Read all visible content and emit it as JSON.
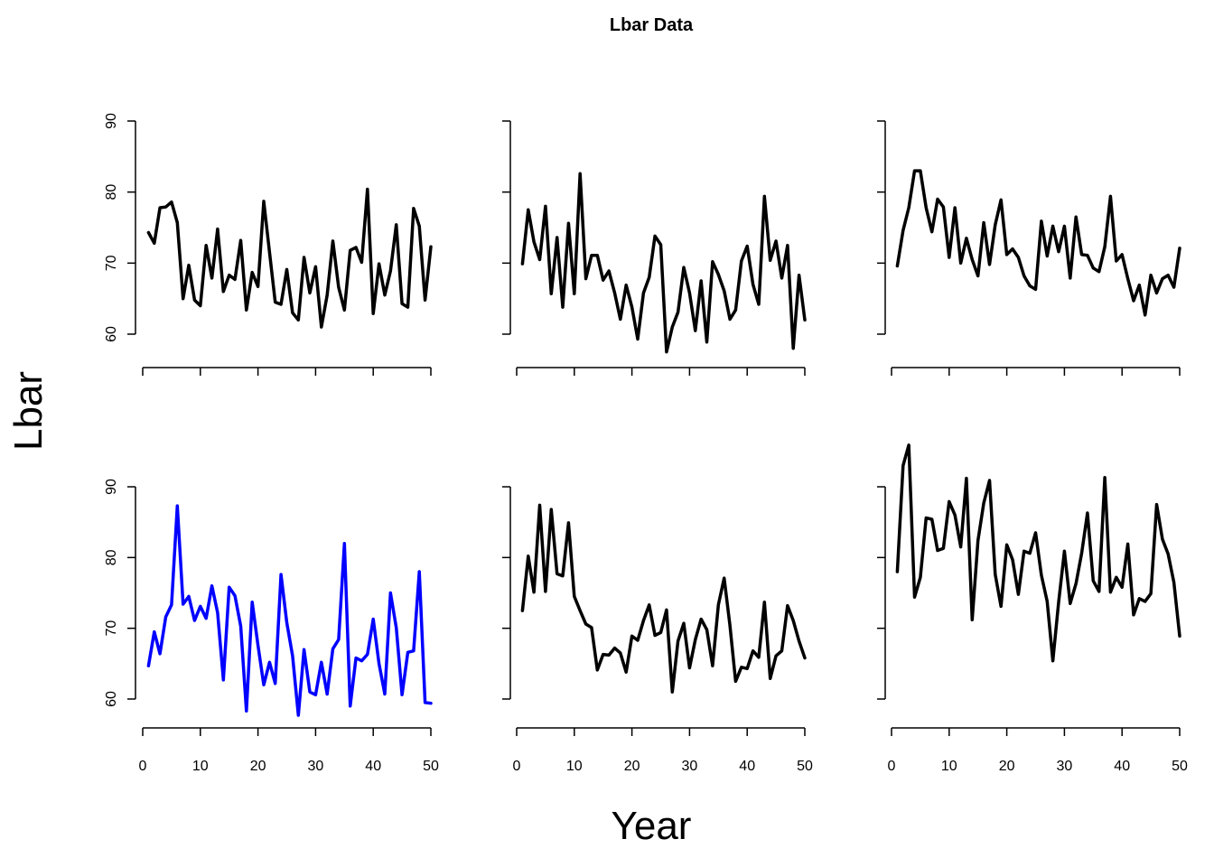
{
  "figure": {
    "title": "Lbar Data",
    "xlabel": "Year",
    "ylabel": "Lbar"
  },
  "chart_data": [
    {
      "type": "line",
      "panel": "row-1-col-1",
      "xlim": [
        0,
        50
      ],
      "ylim": [
        57,
        90
      ],
      "xticks": [
        0,
        10,
        20,
        30,
        40,
        50
      ],
      "yticks": [
        60,
        70,
        80,
        90
      ],
      "show_x_tick_labels": false,
      "show_y_tick_labels": true,
      "color": "#000000",
      "x": [
        1,
        2,
        3,
        4,
        5,
        6,
        7,
        8,
        9,
        10,
        11,
        12,
        13,
        14,
        15,
        16,
        17,
        18,
        19,
        20,
        21,
        22,
        23,
        24,
        25,
        26,
        27,
        28,
        29,
        30,
        31,
        32,
        33,
        34,
        35,
        36,
        37,
        38,
        39,
        40,
        41,
        42,
        43,
        44,
        45,
        46,
        47,
        48,
        49,
        50
      ],
      "y": [
        74.3,
        72.8,
        77.8,
        77.9,
        78.6,
        75.7,
        65.0,
        69.7,
        64.8,
        64.0,
        72.5,
        67.9,
        74.8,
        66.0,
        68.3,
        67.7,
        73.2,
        63.4,
        68.7,
        66.7,
        78.7,
        71.5,
        64.5,
        64.2,
        69.1,
        63.0,
        62.0,
        70.8,
        65.8,
        69.5,
        61.0,
        65.5,
        73.1,
        66.6,
        63.4,
        71.8,
        72.2,
        70.1,
        80.4,
        62.9,
        69.9,
        65.5,
        68.9,
        75.4,
        64.3,
        63.8,
        77.7,
        75.2,
        64.8,
        72.3
      ]
    },
    {
      "type": "line",
      "panel": "row-1-col-2",
      "xlim": [
        0,
        50
      ],
      "ylim": [
        57,
        90
      ],
      "xticks": [
        0,
        10,
        20,
        30,
        40,
        50
      ],
      "yticks": [
        60,
        70,
        80,
        90
      ],
      "show_x_tick_labels": false,
      "show_y_tick_labels": false,
      "color": "#000000",
      "x": [
        1,
        2,
        3,
        4,
        5,
        6,
        7,
        8,
        9,
        10,
        11,
        12,
        13,
        14,
        15,
        16,
        17,
        18,
        19,
        20,
        21,
        22,
        23,
        24,
        25,
        26,
        27,
        28,
        29,
        30,
        31,
        32,
        33,
        34,
        35,
        36,
        37,
        38,
        39,
        40,
        41,
        42,
        43,
        44,
        45,
        46,
        47,
        48,
        49,
        50
      ],
      "y": [
        69.9,
        77.5,
        73.0,
        70.5,
        78.0,
        65.7,
        73.6,
        63.8,
        75.6,
        65.7,
        82.6,
        67.8,
        71.1,
        71.1,
        67.6,
        68.9,
        65.8,
        62.1,
        66.9,
        63.8,
        59.3,
        65.8,
        68.0,
        73.8,
        72.6,
        57.5,
        61.0,
        63.1,
        69.4,
        65.8,
        60.5,
        67.5,
        58.9,
        70.2,
        68.4,
        66.1,
        62.1,
        63.4,
        70.3,
        72.4,
        67.0,
        64.2,
        79.4,
        70.4,
        73.1,
        67.9,
        72.5,
        58.0,
        68.3,
        62.0
      ]
    },
    {
      "type": "line",
      "panel": "row-1-col-3",
      "xlim": [
        0,
        50
      ],
      "ylim": [
        57,
        90
      ],
      "xticks": [
        0,
        10,
        20,
        30,
        40,
        50
      ],
      "yticks": [
        60,
        70,
        80,
        90
      ],
      "show_x_tick_labels": false,
      "show_y_tick_labels": false,
      "color": "#000000",
      "x": [
        1,
        2,
        3,
        4,
        5,
        6,
        7,
        8,
        9,
        10,
        11,
        12,
        13,
        14,
        15,
        16,
        17,
        18,
        19,
        20,
        21,
        22,
        23,
        24,
        25,
        26,
        27,
        28,
        29,
        30,
        31,
        32,
        33,
        34,
        35,
        36,
        37,
        38,
        39,
        40,
        41,
        42,
        43,
        44,
        45,
        46,
        47,
        48,
        49,
        50
      ],
      "y": [
        69.6,
        74.6,
        77.8,
        83.0,
        83.0,
        77.8,
        74.4,
        79.0,
        77.9,
        70.8,
        77.8,
        70.0,
        73.5,
        70.5,
        68.2,
        75.7,
        69.8,
        75.4,
        78.9,
        71.2,
        72.0,
        70.8,
        68.2,
        66.8,
        66.3,
        75.9,
        71.0,
        75.2,
        71.6,
        75.2,
        67.9,
        76.5,
        71.2,
        71.1,
        69.3,
        68.8,
        72.3,
        79.4,
        70.3,
        71.2,
        67.8,
        64.7,
        66.9,
        62.7,
        68.3,
        65.8,
        67.8,
        68.3,
        66.6,
        72.1
      ]
    },
    {
      "type": "line",
      "panel": "row-2-col-1",
      "xlim": [
        0,
        50
      ],
      "ylim": [
        57,
        90
      ],
      "xticks": [
        0,
        10,
        20,
        30,
        40,
        50
      ],
      "yticks": [
        60,
        70,
        80,
        90
      ],
      "show_x_tick_labels": true,
      "show_y_tick_labels": true,
      "color": "#0000ff",
      "x": [
        1,
        2,
        3,
        4,
        5,
        6,
        7,
        8,
        9,
        10,
        11,
        12,
        13,
        14,
        15,
        16,
        17,
        18,
        19,
        20,
        21,
        22,
        23,
        24,
        25,
        26,
        27,
        28,
        29,
        30,
        31,
        32,
        33,
        34,
        35,
        36,
        37,
        38,
        39,
        40,
        41,
        42,
        43,
        44,
        45,
        46,
        47,
        48,
        49,
        50
      ],
      "y": [
        64.7,
        69.5,
        66.4,
        71.6,
        73.3,
        87.3,
        73.4,
        74.5,
        71.1,
        73.1,
        71.4,
        76.0,
        72.2,
        62.7,
        75.8,
        74.6,
        70.3,
        58.3,
        73.7,
        67.6,
        62.0,
        65.2,
        62.2,
        77.6,
        70.8,
        66.1,
        57.7,
        67.0,
        61.0,
        60.6,
        65.2,
        60.7,
        67.1,
        68.4,
        82.0,
        59.0,
        65.8,
        65.4,
        66.3,
        71.3,
        65.0,
        60.7,
        75.0,
        70.1,
        60.6,
        66.6,
        66.8,
        78.0,
        59.5,
        59.4
      ]
    },
    {
      "type": "line",
      "panel": "row-2-col-2",
      "xlim": [
        0,
        50
      ],
      "ylim": [
        57,
        90
      ],
      "xticks": [
        0,
        10,
        20,
        30,
        40,
        50
      ],
      "yticks": [
        60,
        70,
        80,
        90
      ],
      "show_x_tick_labels": true,
      "show_y_tick_labels": false,
      "color": "#000000",
      "x": [
        1,
        2,
        3,
        4,
        5,
        6,
        7,
        8,
        9,
        10,
        11,
        12,
        13,
        14,
        15,
        16,
        17,
        18,
        19,
        20,
        21,
        22,
        23,
        24,
        25,
        26,
        27,
        28,
        29,
        30,
        31,
        32,
        33,
        34,
        35,
        36,
        37,
        38,
        39,
        40,
        41,
        42,
        43,
        44,
        45,
        46,
        47,
        48,
        49,
        50
      ],
      "y": [
        72.5,
        80.2,
        75.1,
        87.4,
        75.2,
        86.8,
        77.7,
        77.4,
        84.9,
        74.5,
        72.5,
        70.6,
        70.1,
        64.1,
        66.3,
        66.2,
        67.2,
        66.5,
        63.8,
        68.9,
        68.3,
        71.1,
        73.3,
        69.0,
        69.4,
        72.6,
        61.0,
        68.2,
        70.7,
        64.4,
        68.4,
        71.3,
        69.8,
        64.7,
        73.3,
        77.1,
        70.4,
        62.5,
        64.5,
        64.3,
        66.8,
        65.9,
        73.7,
        62.9,
        66.1,
        66.8,
        73.2,
        71.1,
        68.2,
        65.8
      ]
    },
    {
      "type": "line",
      "panel": "row-2-col-3",
      "xlim": [
        0,
        50
      ],
      "ylim": [
        57,
        90
      ],
      "xticks": [
        0,
        10,
        20,
        30,
        40,
        50
      ],
      "yticks": [
        60,
        70,
        80,
        90
      ],
      "show_x_tick_labels": true,
      "show_y_tick_labels": false,
      "color": "#000000",
      "x": [
        1,
        2,
        3,
        4,
        5,
        6,
        7,
        8,
        9,
        10,
        11,
        12,
        13,
        14,
        15,
        16,
        17,
        18,
        19,
        20,
        21,
        22,
        23,
        24,
        25,
        26,
        27,
        28,
        29,
        30,
        31,
        32,
        33,
        34,
        35,
        36,
        37,
        38,
        39,
        40,
        41,
        42,
        43,
        44,
        45,
        46,
        47,
        48,
        49,
        50
      ],
      "y": [
        78.0,
        93.0,
        95.9,
        74.4,
        77.2,
        85.6,
        85.4,
        81.0,
        81.3,
        87.9,
        86.0,
        81.5,
        91.2,
        71.2,
        82.4,
        87.7,
        90.9,
        77.6,
        73.1,
        81.8,
        79.7,
        74.8,
        80.9,
        80.6,
        83.5,
        77.5,
        73.8,
        65.4,
        73.7,
        80.9,
        73.5,
        76.3,
        80.6,
        86.3,
        76.7,
        75.2,
        91.3,
        75.1,
        77.2,
        75.8,
        81.9,
        71.9,
        74.2,
        73.8,
        74.9,
        87.5,
        82.6,
        80.5,
        76.5,
        68.9
      ]
    }
  ]
}
